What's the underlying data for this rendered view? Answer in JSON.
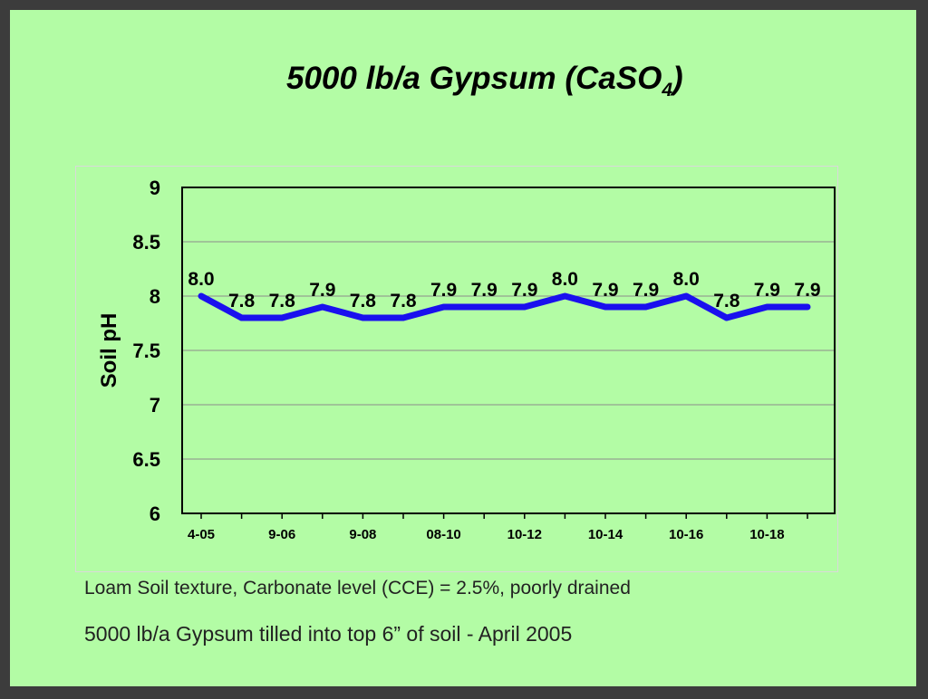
{
  "slide": {
    "title_main": "5000 lb/a Gypsum (CaSO",
    "title_sub": "4",
    "title_close": ")",
    "note1": "Loam Soil texture, Carbonate level (CCE) = 2.5%, poorly drained",
    "note2": "5000 lb/a Gypsum tilled into top 6” of soil - April 2005"
  },
  "colors": {
    "slide_background": "#b3fca5",
    "line": "#1a10ee",
    "plot_area": "#b3fca5",
    "gridline": "#8c8c8c"
  },
  "chart_data": {
    "type": "line",
    "title": "",
    "ylabel": "Soil pH",
    "xlabel": "",
    "ylim": [
      6,
      9
    ],
    "yticks": [
      "6",
      "6.5",
      "7",
      "7.5",
      "8",
      "8.5",
      "9"
    ],
    "grid": true,
    "legend": "none",
    "x_tick_labels": [
      "4-05",
      "9-06",
      "9-08",
      "08-10",
      "10-12",
      "10-14",
      "10-16",
      "10-18"
    ],
    "x_tick_every": 2,
    "series": [
      {
        "values": [
          8.0,
          7.8,
          7.8,
          7.9,
          7.8,
          7.8,
          7.9,
          7.9,
          7.9,
          8.0,
          7.9,
          7.9,
          8.0,
          7.8,
          7.9,
          7.9
        ],
        "labels": [
          "8.0",
          "7.8",
          "7.8",
          "7.9",
          "7.8",
          "7.8",
          "7.9",
          "7.9",
          "7.9",
          "8.0",
          "7.9",
          "7.9",
          "8.0",
          "7.8",
          "7.9",
          "7.9"
        ]
      }
    ]
  }
}
